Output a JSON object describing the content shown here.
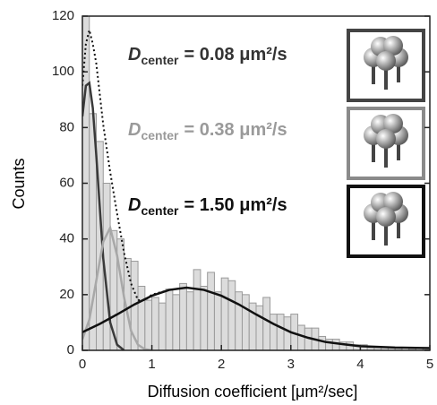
{
  "chart_data": {
    "type": "histogram",
    "xlabel": "Diffusion coefficient [μm²/sec]",
    "ylabel": "Counts",
    "bins": [
      0,
      0.1,
      0.2,
      0.3,
      0.4,
      0.5,
      0.6,
      0.7,
      0.8,
      0.9,
      1.0,
      1.1,
      1.2,
      1.3,
      1.4,
      1.5,
      1.6,
      1.7,
      1.8,
      1.9,
      2.0,
      2.1,
      2.2,
      2.3,
      2.4,
      2.5,
      2.6,
      2.7,
      2.8,
      2.9,
      3.0,
      3.1,
      3.2,
      3.3,
      3.4,
      3.5,
      3.6,
      3.7,
      3.8,
      3.9,
      4.0,
      4.1,
      4.2,
      4.3,
      4.4,
      4.5,
      4.6,
      4.7,
      4.8,
      4.9,
      5.0
    ],
    "counts": [
      120,
      85,
      75,
      60,
      43,
      40,
      33,
      32,
      23,
      18,
      19,
      17,
      22,
      20,
      24,
      21,
      29,
      23,
      28,
      21,
      26,
      25,
      21,
      20,
      17,
      16,
      19,
      13,
      13,
      12,
      13,
      9,
      8,
      8,
      5,
      4,
      4,
      3,
      3,
      2,
      2,
      1,
      1,
      1,
      1,
      1,
      0,
      1,
      0,
      1
    ],
    "color": "#dcdcdc",
    "edgecolor": "#9a9a9a",
    "series": [
      {
        "color": "#3a3a3a",
        "dash": false,
        "x": [
          0,
          0.05,
          0.1,
          0.15,
          0.2,
          0.3,
          0.4,
          0.5,
          0.6
        ],
        "values": [
          84,
          95,
          96,
          87,
          70,
          33,
          10,
          2,
          0
        ]
      },
      {
        "color": "#a8a8a8",
        "dash": false,
        "x": [
          0,
          0.1,
          0.2,
          0.3,
          0.4,
          0.5,
          0.6,
          0.7,
          0.8,
          0.9,
          1.0
        ],
        "values": [
          4,
          11,
          25,
          39,
          44,
          34,
          19,
          7,
          2,
          0.4,
          0
        ]
      },
      {
        "color": "#111111",
        "dash": false,
        "x": [
          0,
          0.25,
          0.5,
          0.75,
          1.0,
          1.25,
          1.5,
          1.75,
          2.0,
          2.25,
          2.5,
          2.75,
          3.0,
          3.25,
          3.5,
          3.75,
          4.0,
          4.5,
          5.0
        ],
        "values": [
          6.5,
          9.5,
          12.9,
          16.5,
          19.6,
          21.7,
          22.5,
          21.7,
          19.6,
          16.5,
          12.9,
          9.5,
          6.5,
          4.5,
          3,
          2.2,
          1.5,
          1,
          0.8
        ]
      },
      {
        "color": "#111111",
        "dash": true,
        "x": [
          0,
          0.05,
          0.1,
          0.15,
          0.2,
          0.3,
          0.4,
          0.5,
          0.6,
          0.7,
          0.8,
          0.9,
          1.0,
          1.25,
          1.5
        ],
        "values": [
          95,
          110,
          115,
          110,
          103,
          81,
          64,
          49,
          35,
          24,
          18,
          18,
          20,
          21.7,
          22.5
        ]
      }
    ],
    "xlim": [
      0,
      5
    ],
    "ylim": [
      0,
      120
    ],
    "xticks": [
      0,
      1,
      2,
      3,
      4,
      5
    ],
    "yticks": [
      0,
      20,
      40,
      60,
      80,
      100,
      120
    ],
    "annotations": [
      {
        "symbol": "D",
        "subscript": "center",
        "text": "= 0.08 μm²/s",
        "color": "#333333"
      },
      {
        "symbol": "D",
        "subscript": "center",
        "text": "= 0.38 μm²/s",
        "color": "#9a9a9a"
      },
      {
        "symbol": "D",
        "subscript": "center",
        "text": "= 1.50 μm²/s",
        "color": "#111111"
      }
    ]
  }
}
